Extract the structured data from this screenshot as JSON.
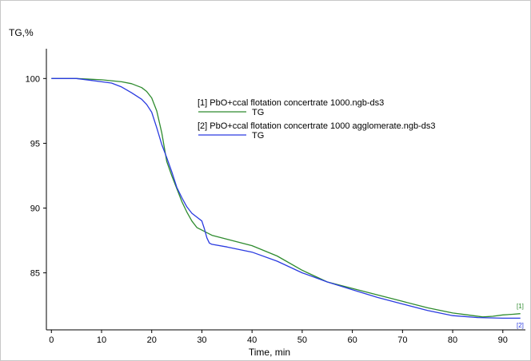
{
  "chart_data": {
    "type": "line",
    "title": "",
    "xlabel": "Time, min",
    "ylabel": "TG,%",
    "xlim": [
      -1,
      94.5
    ],
    "ylim": [
      80.6,
      102.3
    ],
    "x_ticks": [
      0,
      10,
      20,
      30,
      40,
      50,
      60,
      70,
      80,
      90
    ],
    "y_ticks": [
      85,
      90,
      95,
      100
    ],
    "grid": false,
    "legend_position": "upper-middle",
    "series": [
      {
        "name": "[1] PbO+ccal flotation concertrate 1000.ngb-ds3",
        "legend_sub": "TG",
        "end_label": "[1]",
        "color": "#2e8b2e",
        "x": [
          0,
          5,
          10,
          14,
          16,
          18,
          19,
          20,
          21,
          22,
          23,
          24,
          25,
          26,
          27,
          28,
          29,
          30,
          32,
          35,
          40,
          45,
          50,
          55,
          60,
          65,
          70,
          75,
          80,
          83,
          86,
          88,
          90,
          92,
          93.5
        ],
        "y": [
          100,
          100,
          99.9,
          99.75,
          99.6,
          99.3,
          99.0,
          98.5,
          97.5,
          95.8,
          93.6,
          92.5,
          91.5,
          90.5,
          89.7,
          89.0,
          88.5,
          88.3,
          87.9,
          87.6,
          87.1,
          86.3,
          85.2,
          84.3,
          83.8,
          83.3,
          82.8,
          82.3,
          81.9,
          81.75,
          81.6,
          81.65,
          81.75,
          81.8,
          81.85
        ]
      },
      {
        "name": "[2] PbO+ccal flotation concertrate 1000 agglomerate.ngb-ds3",
        "legend_sub": "TG",
        "end_label": "[2]",
        "color": "#2a3be0",
        "x": [
          0,
          5,
          8,
          10,
          12,
          14,
          16,
          18,
          19,
          20,
          21,
          22,
          23,
          24,
          25,
          26,
          27,
          28,
          29,
          30,
          30.5,
          31,
          31.5,
          32,
          35,
          40,
          45,
          50,
          55,
          60,
          65,
          70,
          75,
          80,
          85,
          90,
          93.5
        ],
        "y": [
          100,
          100,
          99.85,
          99.75,
          99.65,
          99.35,
          98.9,
          98.4,
          98.0,
          97.4,
          96.2,
          94.9,
          93.9,
          92.8,
          91.6,
          90.8,
          90.1,
          89.6,
          89.3,
          89.0,
          88.4,
          87.7,
          87.3,
          87.2,
          87.0,
          86.6,
          85.9,
          85.0,
          84.3,
          83.7,
          83.1,
          82.6,
          82.1,
          81.7,
          81.55,
          81.5,
          81.5
        ]
      }
    ]
  }
}
